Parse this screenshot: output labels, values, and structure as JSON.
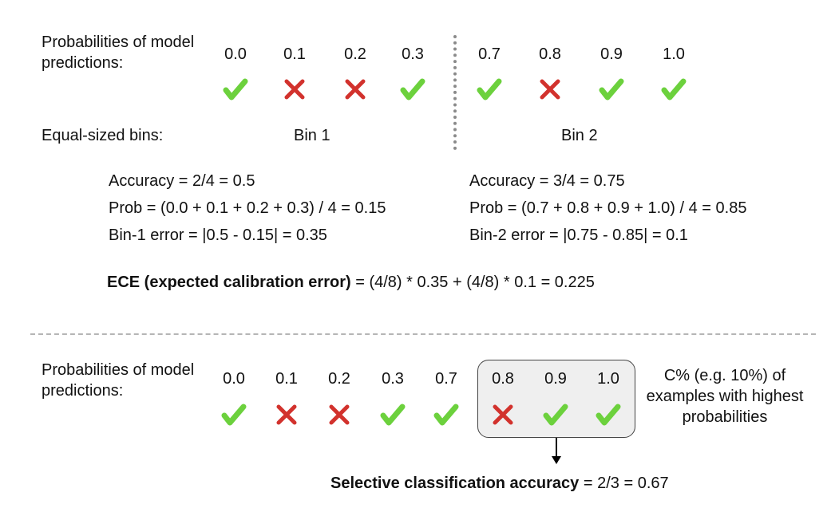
{
  "top": {
    "label": "Probabilities of model predictions:",
    "predictions": [
      {
        "prob": "0.0",
        "correct": true
      },
      {
        "prob": "0.1",
        "correct": false
      },
      {
        "prob": "0.2",
        "correct": false
      },
      {
        "prob": "0.3",
        "correct": true
      },
      {
        "prob": "0.7",
        "correct": true
      },
      {
        "prob": "0.8",
        "correct": false
      },
      {
        "prob": "0.9",
        "correct": true
      },
      {
        "prob": "1.0",
        "correct": true
      }
    ],
    "bins_label": "Equal-sized bins:",
    "bin1": {
      "name": "Bin 1",
      "accuracy": "Accuracy = 2/4 = 0.5",
      "prob": "Prob = (0.0 + 0.1 + 0.2 + 0.3) / 4 = 0.15",
      "error": "Bin-1 error = |0.5 - 0.15| = 0.35"
    },
    "bin2": {
      "name": "Bin 2",
      "accuracy": "Accuracy = 3/4 = 0.75",
      "prob": "Prob = (0.7 + 0.8 + 0.9 + 1.0) / 4 = 0.85",
      "error": "Bin-2 error = |0.75 - 0.85| = 0.1"
    },
    "ece_bold": "ECE (expected calibration error)",
    "ece_rest": " = (4/8) * 0.35 + (4/8) * 0.1 = 0.225"
  },
  "bottom": {
    "label": "Probabilities of model predictions:",
    "note": "C% (e.g. 10%) of examples with highest probabilities",
    "result_bold": "Selective classification accuracy",
    "result_rest": " = 2/3 = 0.67"
  },
  "colors": {
    "check": "#6cd13d",
    "cross": "#d2322d",
    "box_fill": "#efefef"
  },
  "icons": {
    "correct": "check-icon",
    "incorrect": "cross-icon"
  }
}
